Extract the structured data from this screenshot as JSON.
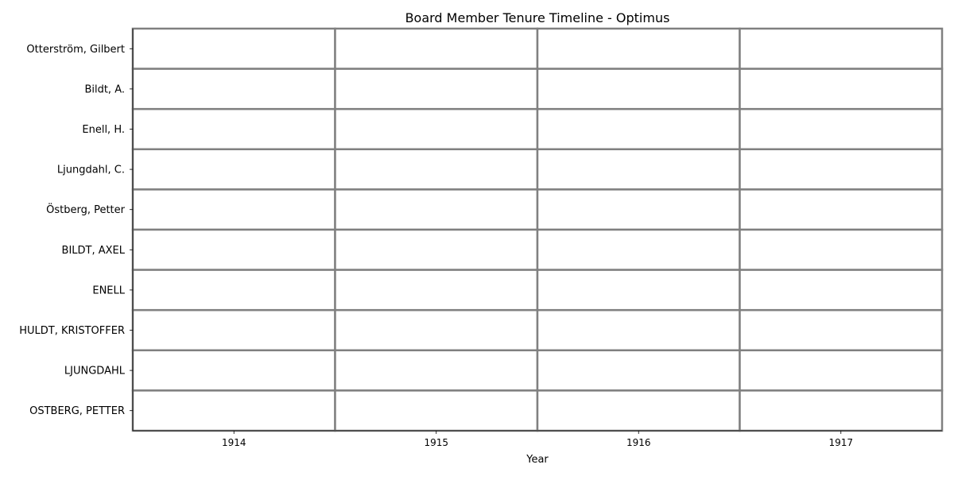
{
  "chart_data": {
    "type": "heatmap",
    "title": "Board Member Tenure Timeline - Optimus",
    "xlabel": "Year",
    "ylabel": "",
    "x": [
      "1914",
      "1915",
      "1916",
      "1917"
    ],
    "y": [
      "Otterström, Gilbert",
      "Bildt, A.",
      "Enell, H.",
      "Ljungdahl, C.",
      "Östberg, Petter",
      "BILDT, AXEL",
      "ENELL",
      "HULDT, KRISTOFFER",
      "LJUNGDAHL",
      "OSTBERG, PETTER"
    ],
    "values": [
      [
        0,
        0,
        0,
        0
      ],
      [
        0,
        0,
        0,
        0
      ],
      [
        0,
        0,
        0,
        0
      ],
      [
        0,
        0,
        0,
        0
      ],
      [
        0,
        0,
        0,
        0
      ],
      [
        0,
        0,
        0,
        0
      ],
      [
        0,
        0,
        0,
        0
      ],
      [
        0,
        0,
        0,
        0
      ],
      [
        0,
        0,
        0,
        0
      ],
      [
        0,
        0,
        0,
        0
      ]
    ],
    "cell_color": "#ffffff",
    "grid_color": "#808080",
    "grid": true,
    "legend": "none"
  }
}
